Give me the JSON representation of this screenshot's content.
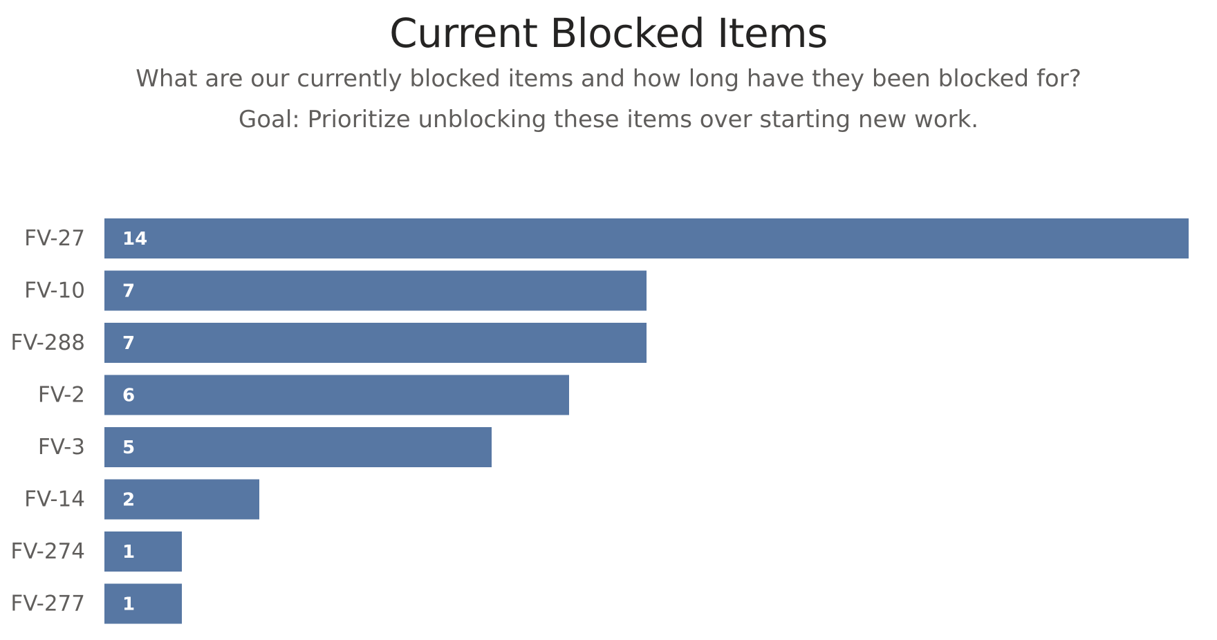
{
  "chart_data": {
    "type": "bar",
    "orientation": "horizontal",
    "title": "Current Blocked Items",
    "subtitle_lines": [
      "What are our currently blocked items and how long have they been blocked for?",
      "Goal: Prioritize unblocking these items over starting new work."
    ],
    "categories": [
      "FV-27",
      "FV-10",
      "FV-288",
      "FV-2",
      "FV-3",
      "FV-14",
      "FV-274",
      "FV-277"
    ],
    "values": [
      14,
      7,
      7,
      6,
      5,
      2,
      1,
      1
    ],
    "xlim": [
      0,
      14
    ],
    "bar_color": "#5777a3",
    "data_labels": "inside-start",
    "grid": false,
    "legend": "none"
  }
}
